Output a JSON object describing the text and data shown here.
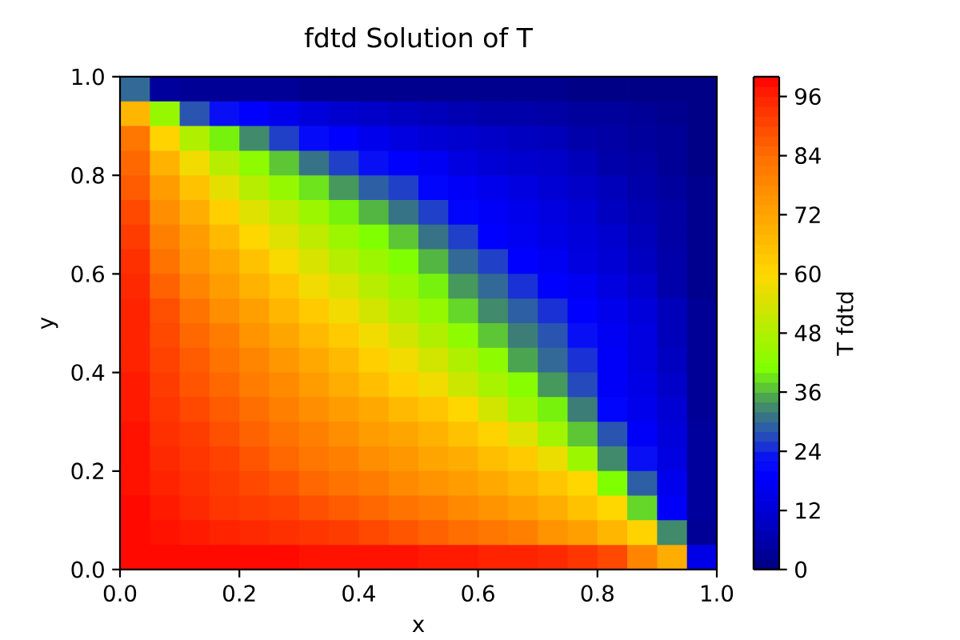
{
  "chart_data": {
    "type": "heatmap",
    "title": "fdtd Solution of T",
    "xlabel": "x",
    "ylabel": "y",
    "clabel": "T fdtd",
    "xlim": [
      0,
      1
    ],
    "ylim": [
      0,
      1
    ],
    "xticks": [
      {
        "value": 0,
        "label": "0.0"
      },
      0.2,
      0.4,
      0.6,
      0.8,
      {
        "value": 1,
        "label": "1.0"
      }
    ],
    "yticks": [
      {
        "value": 0,
        "label": "0.0"
      },
      0.2,
      0.4,
      0.6,
      0.8,
      {
        "value": 1,
        "label": "1.0"
      }
    ],
    "clim": [
      0,
      100
    ],
    "cticks": [
      0,
      12,
      24,
      36,
      48,
      60,
      72,
      84,
      96
    ],
    "cells": [
      [
        30,
        4,
        3,
        3,
        3,
        3,
        2,
        2,
        2,
        2,
        2,
        2,
        2,
        2,
        2,
        1,
        1,
        1,
        1,
        1
      ],
      [
        68,
        44,
        28,
        22,
        19,
        16,
        13,
        11,
        10,
        9,
        8,
        7,
        6,
        6,
        5,
        4,
        4,
        3,
        2,
        1
      ],
      [
        82,
        61,
        48,
        40,
        33,
        26,
        21,
        19,
        16,
        14,
        12,
        11,
        10,
        9,
        8,
        6,
        5,
        4,
        3,
        1
      ],
      [
        85,
        69,
        58,
        49,
        43,
        37,
        31,
        26,
        22,
        19,
        17,
        14,
        12,
        11,
        10,
        8,
        6,
        5,
        3,
        1
      ],
      [
        87,
        74,
        65,
        56,
        49,
        44,
        39,
        34,
        29,
        26,
        20,
        18,
        16,
        14,
        12,
        10,
        8,
        6,
        4,
        2
      ],
      [
        90,
        77,
        70,
        62,
        55,
        50,
        45,
        40,
        36,
        31,
        26,
        20,
        18,
        16,
        14,
        12,
        9,
        7,
        5,
        2
      ],
      [
        92,
        80,
        74,
        67,
        60,
        55,
        50,
        45,
        41,
        37,
        31,
        26,
        19,
        17,
        15,
        13,
        11,
        8,
        5,
        2
      ],
      [
        94,
        83,
        76,
        71,
        65,
        59,
        54,
        49,
        45,
        41,
        36,
        30,
        26,
        19,
        17,
        14,
        12,
        9,
        6,
        2
      ],
      [
        95,
        86,
        79,
        74,
        69,
        64,
        58,
        54,
        49,
        45,
        40,
        34,
        30,
        25,
        19,
        17,
        14,
        11,
        6,
        2
      ],
      [
        96,
        89,
        83,
        77,
        73,
        68,
        63,
        58,
        53,
        48,
        44,
        38,
        33,
        29,
        25,
        19,
        16,
        13,
        8,
        3
      ],
      [
        96,
        90,
        85,
        81,
        76,
        72,
        67,
        63,
        58,
        53,
        48,
        43,
        37,
        32,
        28,
        22,
        17,
        14,
        8,
        3
      ],
      [
        96,
        91,
        87,
        83,
        79,
        75,
        71,
        67,
        62,
        58,
        53,
        48,
        43,
        35,
        30,
        25,
        18,
        14,
        9,
        3
      ],
      [
        97,
        92,
        88,
        85,
        81,
        78,
        74,
        70,
        66,
        62,
        58,
        52,
        47,
        42,
        34,
        27,
        18,
        15,
        10,
        3
      ],
      [
        97,
        93,
        90,
        87,
        84,
        80,
        77,
        74,
        71,
        67,
        64,
        60,
        53,
        46,
        40,
        32,
        20,
        16,
        12,
        3
      ],
      [
        98,
        94,
        92,
        89,
        86,
        83,
        80,
        77,
        74,
        72,
        69,
        65,
        61,
        55,
        46,
        37,
        28,
        18,
        13,
        4
      ],
      [
        98,
        95,
        93,
        91,
        88,
        85,
        82,
        80,
        77,
        75,
        72,
        70,
        66,
        63,
        57,
        45,
        33,
        22,
        14,
        4
      ],
      [
        98,
        96,
        94,
        92,
        90,
        88,
        85,
        83,
        81,
        78,
        76,
        74,
        71,
        68,
        64,
        60,
        41,
        29,
        16,
        4
      ],
      [
        99,
        97,
        95,
        93,
        92,
        91,
        89,
        87,
        85,
        83,
        81,
        78,
        76,
        73,
        70,
        65,
        60,
        38,
        18,
        4
      ],
      [
        99,
        98,
        97,
        96,
        95,
        94,
        93,
        92,
        90,
        88,
        86,
        84,
        82,
        80,
        76,
        73,
        68,
        61,
        33,
        3
      ],
      [
        99,
        99,
        99,
        99,
        99,
        99,
        98,
        98,
        98,
        98,
        97,
        97,
        96,
        96,
        95,
        93,
        90,
        79,
        70,
        15
      ]
    ]
  }
}
